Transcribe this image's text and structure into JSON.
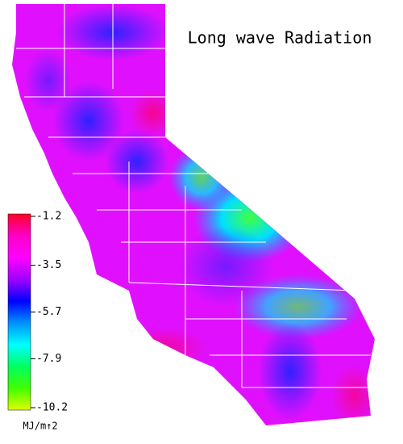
{
  "title": "Long wave Radiation",
  "colorbar": {
    "lim": [
      -1.2,
      -10.2
    ],
    "ticks": [
      -1.2,
      -3.5,
      -5.7,
      -7.9,
      -10.2
    ],
    "unit": "MJ/m↑2",
    "colors": [
      "#ff0028",
      "#ff00c8",
      "#ff00ff",
      "#a000ff",
      "#0000ff",
      "#0090ff",
      "#00ffff",
      "#00ff60",
      "#40ff00",
      "#e0ff00"
    ]
  }
}
